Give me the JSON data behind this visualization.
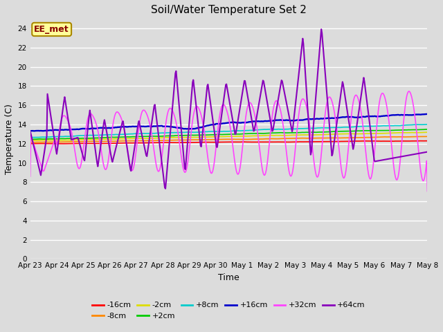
{
  "title": "Soil/Water Temperature Set 2",
  "xlabel": "Time",
  "ylabel": "Temperature (C)",
  "ylim": [
    0,
    25
  ],
  "yticks": [
    0,
    2,
    4,
    6,
    8,
    10,
    12,
    14,
    16,
    18,
    20,
    22,
    24
  ],
  "xtick_labels": [
    "Apr 23",
    "Apr 24",
    "Apr 25",
    "Apr 26",
    "Apr 27",
    "Apr 28",
    "Apr 29",
    "Apr 30",
    "May 1",
    "May 2",
    "May 3",
    "May 4",
    "May 5",
    "May 6",
    "May 7",
    "May 8"
  ],
  "bg_color": "#dcdcdc",
  "series_colors": {
    "-16cm": "#ff0000",
    "-8cm": "#ff8800",
    "-2cm": "#dddd00",
    "+2cm": "#00cc00",
    "+8cm": "#00cccc",
    "+16cm": "#0000cc",
    "+32cm": "#ff44ff",
    "+64cm": "#8800bb"
  },
  "annotation_text": "EE_met",
  "annotation_bg": "#ffff99",
  "annotation_border": "#aa8800",
  "legend_labels": [
    "-16cm",
    "-8cm",
    "-2cm",
    "+2cm",
    "+8cm",
    "+16cm",
    "+32cm",
    "+64cm"
  ]
}
